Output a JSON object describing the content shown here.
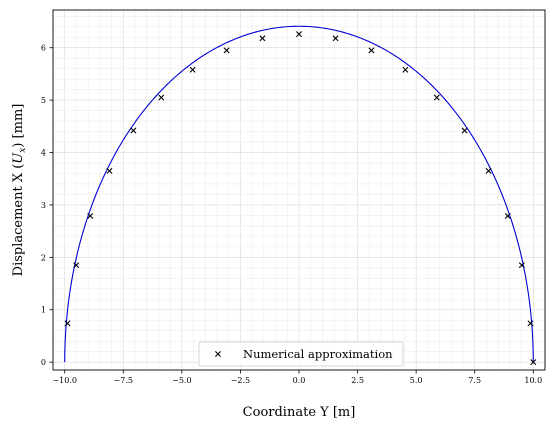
{
  "chart_data": {
    "type": "scatter",
    "xlabel": "Coordinate Y [m]",
    "ylabel": "Displacement X (U_x) [mm]",
    "ylabel_parts": {
      "prefix": "Displacement X (",
      "symbol": "U",
      "subscript": "x",
      "suffix": ") [mm]"
    },
    "xlim": [
      -10.5,
      10.5
    ],
    "ylim": [
      -0.15,
      6.72
    ],
    "xticks": [
      -10.0,
      -7.5,
      -5.0,
      -2.5,
      0.0,
      2.5,
      5.0,
      7.5,
      10.0
    ],
    "xtick_labels": [
      "−10.0",
      "−7.5",
      "−5.0",
      "−2.5",
      "0.0",
      "2.5",
      "5.0",
      "7.5",
      "10.0"
    ],
    "yticks": [
      0,
      1,
      2,
      3,
      4,
      5,
      6
    ],
    "ytick_labels": [
      "0",
      "1",
      "2",
      "3",
      "4",
      "5",
      "6"
    ],
    "grid": true,
    "legend_placement": "bottom-center",
    "series": [
      {
        "name": "Numerical approximation",
        "kind": "scatter",
        "marker": "x",
        "color": "#000000",
        "x": [
          -9.88,
          -9.51,
          -8.91,
          -8.09,
          -7.07,
          -5.88,
          -4.54,
          -3.09,
          -1.56,
          0.0,
          1.56,
          3.09,
          4.54,
          5.88,
          7.07,
          8.09,
          8.91,
          9.51,
          9.88,
          10.0
        ],
        "y": [
          0.74,
          1.85,
          2.79,
          3.65,
          4.42,
          5.05,
          5.58,
          5.95,
          6.18,
          6.26,
          6.18,
          5.95,
          5.58,
          5.05,
          4.42,
          3.65,
          2.79,
          1.85,
          0.74,
          0.0
        ]
      },
      {
        "kind": "line",
        "color": "#0000d6",
        "curve": {
          "center_x": 0,
          "half_width": 10,
          "peak": 6.41
        }
      }
    ]
  }
}
